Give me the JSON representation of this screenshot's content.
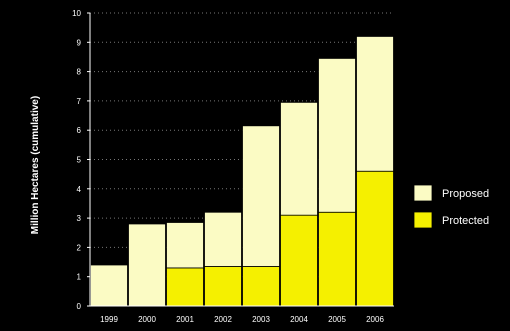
{
  "chart_data": {
    "type": "bar",
    "stacked": true,
    "title": "",
    "xlabel": "",
    "ylabel": "Million Hectares (cumulative)",
    "ylim": [
      0,
      10
    ],
    "yticks": [
      0,
      1,
      2,
      3,
      4,
      5,
      6,
      7,
      8,
      9,
      10
    ],
    "grid": true,
    "legend_position": "right",
    "categories": [
      "1999",
      "2000",
      "2001",
      "2002",
      "2003",
      "2004",
      "2005",
      "2006"
    ],
    "series": [
      {
        "name": "Protected",
        "color": "#f5f000",
        "values": [
          0,
          0,
          1.3,
          1.35,
          1.35,
          3.1,
          3.2,
          4.6
        ]
      },
      {
        "name": "Proposed",
        "color": "#fbfbc4",
        "values": [
          1.4,
          2.8,
          1.55,
          1.85,
          4.8,
          3.85,
          5.25,
          4.6
        ]
      }
    ],
    "background_color": "#000000",
    "axis_color": "#ffffff",
    "text_color": "#ffffff"
  }
}
